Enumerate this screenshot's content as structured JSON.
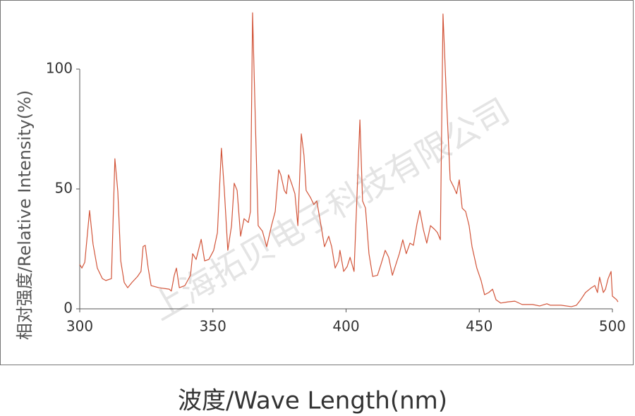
{
  "chart_data": {
    "type": "line",
    "x_label": "波度/Wave Length(nm)",
    "y_label": "相对强度/Relative Intensity(%)",
    "watermark": "上海拓贝电子科技有限公司",
    "color": "#d2553a",
    "xlim": [
      300,
      502.5
    ],
    "ylim": [
      0,
      125
    ],
    "xticks": [
      300,
      350,
      400,
      450,
      500
    ],
    "yticks": [
      0,
      50,
      100
    ],
    "x": [
      300,
      300.8,
      301.9,
      303.7,
      305,
      306.6,
      308.5,
      309.8,
      311.9,
      313.2,
      314.3,
      315.4,
      316.7,
      318,
      319.6,
      321.7,
      323,
      323.8,
      324.6,
      325.7,
      326.8,
      329.7,
      333.6,
      334.4,
      335.5,
      336.3,
      337.4,
      339.5,
      341.6,
      342.4,
      343.7,
      345.6,
      346.9,
      348.5,
      350.3,
      351.7,
      353.2,
      354.3,
      355.6,
      357,
      358,
      359.1,
      360.4,
      361.7,
      363.3,
      364.1,
      364.9,
      366,
      367,
      368.6,
      370.2,
      372,
      373.4,
      374.7,
      375.5,
      376.8,
      377.6,
      378.4,
      379.7,
      380.8,
      381.9,
      383.2,
      384.2,
      385,
      386.6,
      387.9,
      389,
      390.6,
      391.9,
      393.5,
      394.6,
      395.9,
      397.2,
      397.7,
      399.1,
      400.4,
      401.5,
      403,
      405.2,
      406.2,
      407.3,
      408.6,
      410,
      411.8,
      413.1,
      414.7,
      416,
      417.4,
      418.7,
      420,
      421.3,
      422.6,
      424,
      425.3,
      426.6,
      427.7,
      429,
      430.3,
      431.7,
      433.2,
      434.3,
      435.4,
      436.4,
      437.7,
      439.1,
      440.4,
      441.5,
      442.5,
      443.6,
      444.9,
      446.2,
      447.3,
      449.1,
      450.7,
      452,
      453.6,
      455,
      456.3,
      458.1,
      460.8,
      463.4,
      466.1,
      470,
      472.7,
      475.4,
      476.7,
      480.7,
      484.6,
      486.5,
      488.1,
      489.9,
      492.1,
      493.4,
      494.4,
      495.2,
      496.6,
      497.4,
      498.4,
      499.5,
      500,
      501.6,
      502.1
    ],
    "values": [
      18.5,
      17,
      19.4,
      41,
      27,
      17,
      12.6,
      11.8,
      12.6,
      62.6,
      49,
      20,
      11,
      8.8,
      11,
      13.5,
      15.6,
      26,
      26.5,
      17,
      9.7,
      8.8,
      8.2,
      7.4,
      14,
      17,
      8.8,
      9.7,
      14,
      23,
      20.6,
      29,
      20,
      20.6,
      24.4,
      31.8,
      67,
      49.4,
      24.4,
      34.7,
      52.4,
      49.4,
      30.3,
      37.6,
      36,
      40.6,
      123.5,
      75.9,
      34.7,
      32.4,
      25.9,
      34.7,
      40.6,
      58,
      55.9,
      49.4,
      48,
      55.9,
      51.8,
      48,
      34.7,
      73,
      64,
      49.4,
      46.5,
      43.5,
      45,
      34.7,
      25.9,
      30.3,
      25.9,
      17,
      20,
      24.4,
      15.6,
      17.6,
      21.5,
      15.6,
      78.8,
      45,
      42,
      23,
      13.5,
      14,
      18.5,
      24.4,
      21.5,
      14,
      18.5,
      23,
      28.8,
      23,
      27.4,
      26.5,
      35.3,
      41,
      33.2,
      27.4,
      34.7,
      33.2,
      31.8,
      28.8,
      123,
      87.6,
      53.8,
      50.9,
      48,
      53.8,
      42,
      40.6,
      34.7,
      25.9,
      17,
      11.8,
      5.9,
      6.8,
      8.2,
      3.8,
      2.4,
      2.9,
      3.2,
      1.8,
      1.8,
      1.2,
      2.1,
      1.5,
      1.5,
      0.9,
      1.5,
      3.8,
      6.8,
      8.8,
      9.7,
      6.8,
      13.2,
      6.8,
      8.2,
      12.6,
      15.6,
      5.3,
      3.8,
      2.9
    ]
  }
}
